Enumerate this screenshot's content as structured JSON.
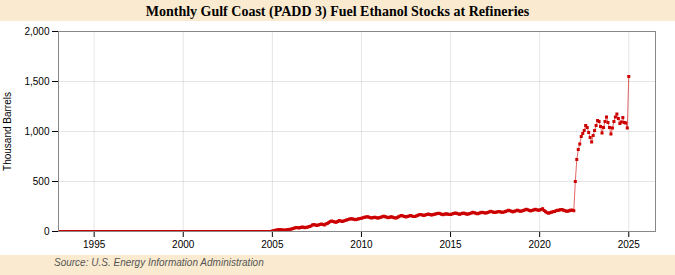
{
  "chart_data": {
    "type": "line",
    "title": "Monthly Gulf Coast (PADD 3) Fuel Ethanol Stocks at Refineries",
    "ylabel": "Thousand Barrels",
    "source": "Source: U.S. Energy Information Administration",
    "color": "#cc0000",
    "marker": "square",
    "line_style": "solid",
    "grid": true,
    "xlim": [
      1993.0,
      2026.5
    ],
    "xticks": [
      1995,
      2000,
      2005,
      2010,
      2015,
      2020,
      2025
    ],
    "ylim": [
      0,
      2000
    ],
    "yticks": [
      0,
      500,
      {
        "value": 1000,
        "label": "1,000"
      },
      {
        "value": 1500,
        "label": "1,500"
      },
      {
        "value": 2000,
        "label": "2,000"
      }
    ],
    "x": [
      1993.0,
      1993.083,
      1993.167,
      1993.25,
      1993.333,
      1993.417,
      1993.5,
      1993.583,
      1993.667,
      1993.75,
      1993.833,
      1993.917,
      1994.0,
      1994.083,
      1994.167,
      1994.25,
      1994.333,
      1994.417,
      1994.5,
      1994.583,
      1994.667,
      1994.75,
      1994.833,
      1994.917,
      1995.0,
      1995.083,
      1995.167,
      1995.25,
      1995.333,
      1995.417,
      1995.5,
      1995.583,
      1995.667,
      1995.75,
      1995.833,
      1995.917,
      1996.0,
      1996.083,
      1996.167,
      1996.25,
      1996.333,
      1996.417,
      1996.5,
      1996.583,
      1996.667,
      1996.75,
      1996.833,
      1996.917,
      1997.0,
      1997.083,
      1997.167,
      1997.25,
      1997.333,
      1997.417,
      1997.5,
      1997.583,
      1997.667,
      1997.75,
      1997.833,
      1997.917,
      1998.0,
      1998.083,
      1998.167,
      1998.25,
      1998.333,
      1998.417,
      1998.5,
      1998.583,
      1998.667,
      1998.75,
      1998.833,
      1998.917,
      1999.0,
      1999.083,
      1999.167,
      1999.25,
      1999.333,
      1999.417,
      1999.5,
      1999.583,
      1999.667,
      1999.75,
      1999.833,
      1999.917,
      2000.0,
      2000.083,
      2000.167,
      2000.25,
      2000.333,
      2000.417,
      2000.5,
      2000.583,
      2000.667,
      2000.75,
      2000.833,
      2000.917,
      2001.0,
      2001.083,
      2001.167,
      2001.25,
      2001.333,
      2001.417,
      2001.5,
      2001.583,
      2001.667,
      2001.75,
      2001.833,
      2001.917,
      2002.0,
      2002.083,
      2002.167,
      2002.25,
      2002.333,
      2002.417,
      2002.5,
      2002.583,
      2002.667,
      2002.75,
      2002.833,
      2002.917,
      2003.0,
      2003.083,
      2003.167,
      2003.25,
      2003.333,
      2003.417,
      2003.5,
      2003.583,
      2003.667,
      2003.75,
      2003.833,
      2003.917,
      2004.0,
      2004.083,
      2004.167,
      2004.25,
      2004.333,
      2004.417,
      2004.5,
      2004.583,
      2004.667,
      2004.75,
      2004.833,
      2004.917,
      2005.0,
      2005.083,
      2005.167,
      2005.25,
      2005.333,
      2005.417,
      2005.5,
      2005.583,
      2005.667,
      2005.75,
      2005.833,
      2005.917,
      2006.0,
      2006.083,
      2006.167,
      2006.25,
      2006.333,
      2006.417,
      2006.5,
      2006.583,
      2006.667,
      2006.75,
      2006.833,
      2006.917,
      2007.0,
      2007.083,
      2007.167,
      2007.25,
      2007.333,
      2007.417,
      2007.5,
      2007.583,
      2007.667,
      2007.75,
      2007.833,
      2007.917,
      2008.0,
      2008.083,
      2008.167,
      2008.25,
      2008.333,
      2008.417,
      2008.5,
      2008.583,
      2008.667,
      2008.75,
      2008.833,
      2008.917,
      2009.0,
      2009.083,
      2009.167,
      2009.25,
      2009.333,
      2009.417,
      2009.5,
      2009.583,
      2009.667,
      2009.75,
      2009.833,
      2009.917,
      2010.0,
      2010.083,
      2010.167,
      2010.25,
      2010.333,
      2010.417,
      2010.5,
      2010.583,
      2010.667,
      2010.75,
      2010.833,
      2010.917,
      2011.0,
      2011.083,
      2011.167,
      2011.25,
      2011.333,
      2011.417,
      2011.5,
      2011.583,
      2011.667,
      2011.75,
      2011.833,
      2011.917,
      2012.0,
      2012.083,
      2012.167,
      2012.25,
      2012.333,
      2012.417,
      2012.5,
      2012.583,
      2012.667,
      2012.75,
      2012.833,
      2012.917,
      2013.0,
      2013.083,
      2013.167,
      2013.25,
      2013.333,
      2013.417,
      2013.5,
      2013.583,
      2013.667,
      2013.75,
      2013.833,
      2013.917,
      2014.0,
      2014.083,
      2014.167,
      2014.25,
      2014.333,
      2014.417,
      2014.5,
      2014.583,
      2014.667,
      2014.75,
      2014.833,
      2014.917,
      2015.0,
      2015.083,
      2015.167,
      2015.25,
      2015.333,
      2015.417,
      2015.5,
      2015.583,
      2015.667,
      2015.75,
      2015.833,
      2015.917,
      2016.0,
      2016.083,
      2016.167,
      2016.25,
      2016.333,
      2016.417,
      2016.5,
      2016.583,
      2016.667,
      2016.75,
      2016.833,
      2016.917,
      2017.0,
      2017.083,
      2017.167,
      2017.25,
      2017.333,
      2017.417,
      2017.5,
      2017.583,
      2017.667,
      2017.75,
      2017.833,
      2017.917,
      2018.0,
      2018.083,
      2018.167,
      2018.25,
      2018.333,
      2018.417,
      2018.5,
      2018.583,
      2018.667,
      2018.75,
      2018.833,
      2018.917,
      2019.0,
      2019.083,
      2019.167,
      2019.25,
      2019.333,
      2019.417,
      2019.5,
      2019.583,
      2019.667,
      2019.75,
      2019.833,
      2019.917,
      2020.0,
      2020.083,
      2020.167,
      2020.25,
      2020.333,
      2020.417,
      2020.5,
      2020.583,
      2020.667,
      2020.75,
      2020.833,
      2020.917,
      2021.0,
      2021.083,
      2021.167,
      2021.25,
      2021.333,
      2021.417,
      2021.5,
      2021.583,
      2021.667,
      2021.75,
      2021.833,
      2021.917,
      2022.0,
      2022.083,
      2022.167,
      2022.25,
      2022.333,
      2022.417,
      2022.5,
      2022.583,
      2022.667,
      2022.75,
      2022.833,
      2022.917,
      2023.0,
      2023.083,
      2023.167,
      2023.25,
      2023.333,
      2023.417,
      2023.5,
      2023.583,
      2023.667,
      2023.75,
      2023.833,
      2023.917,
      2024.0,
      2024.083,
      2024.167,
      2024.25,
      2024.333,
      2024.417,
      2024.5,
      2024.583,
      2024.667,
      2024.75,
      2024.833,
      2024.917,
      2025.0
    ],
    "values": [
      0,
      0,
      0,
      0,
      0,
      0,
      0,
      0,
      0,
      0,
      0,
      0,
      0,
      0,
      0,
      0,
      0,
      0,
      0,
      0,
      0,
      0,
      0,
      0,
      0,
      0,
      0,
      0,
      0,
      0,
      0,
      0,
      0,
      0,
      0,
      0,
      0,
      0,
      0,
      0,
      0,
      0,
      0,
      0,
      0,
      0,
      0,
      0,
      0,
      0,
      0,
      0,
      0,
      0,
      0,
      0,
      0,
      0,
      0,
      0,
      0,
      0,
      0,
      0,
      0,
      0,
      0,
      0,
      0,
      0,
      0,
      0,
      0,
      0,
      0,
      0,
      0,
      0,
      0,
      0,
      0,
      0,
      0,
      0,
      0,
      0,
      0,
      0,
      0,
      0,
      0,
      0,
      0,
      0,
      0,
      0,
      0,
      0,
      0,
      0,
      0,
      0,
      0,
      0,
      0,
      0,
      0,
      0,
      0,
      0,
      0,
      0,
      0,
      0,
      0,
      0,
      0,
      0,
      0,
      0,
      0,
      0,
      0,
      0,
      0,
      0,
      0,
      0,
      0,
      0,
      0,
      0,
      0,
      0,
      0,
      0,
      0,
      0,
      0,
      0,
      0,
      0,
      0,
      0,
      5,
      8,
      12,
      15,
      18,
      20,
      18,
      15,
      12,
      15,
      18,
      20,
      22,
      25,
      30,
      35,
      40,
      38,
      35,
      40,
      45,
      42,
      38,
      42,
      45,
      50,
      55,
      65,
      70,
      65,
      60,
      65,
      70,
      75,
      70,
      65,
      75,
      80,
      90,
      100,
      105,
      100,
      95,
      92,
      100,
      110,
      105,
      100,
      105,
      110,
      115,
      120,
      125,
      128,
      125,
      122,
      118,
      122,
      126,
      130,
      132,
      138,
      142,
      145,
      148,
      143,
      138,
      135,
      140,
      143,
      138,
      134,
      138,
      142,
      148,
      153,
      148,
      143,
      138,
      142,
      148,
      143,
      138,
      135,
      138,
      148,
      155,
      160,
      155,
      150,
      145,
      150,
      155,
      160,
      155,
      150,
      150,
      156,
      162,
      168,
      170,
      165,
      160,
      165,
      170,
      175,
      170,
      165,
      168,
      172,
      175,
      180,
      182,
      178,
      172,
      168,
      173,
      178,
      173,
      172,
      170,
      175,
      180,
      185,
      182,
      177,
      172,
      177,
      182,
      184,
      178,
      173,
      175,
      180,
      185,
      192,
      188,
      182,
      177,
      182,
      187,
      192,
      190,
      185,
      185,
      190,
      196,
      202,
      198,
      192,
      190,
      195,
      198,
      200,
      193,
      192,
      195,
      200,
      206,
      212,
      208,
      202,
      196,
      202,
      207,
      213,
      207,
      202,
      205,
      210,
      216,
      222,
      217,
      211,
      206,
      211,
      216,
      222,
      217,
      212,
      215,
      220,
      228,
      210,
      198,
      188,
      183,
      188,
      193,
      198,
      200,
      208,
      212,
      213,
      218,
      220,
      213,
      208,
      203,
      203,
      208,
      214,
      213,
      208,
      500,
      720,
      820,
      875,
      950,
      980,
      1010,
      1060,
      1040,
      990,
      940,
      895,
      960,
      1010,
      1060,
      1110,
      1100,
      1050,
      985,
      1040,
      1100,
      1145,
      1090,
      1040,
      975,
      1035,
      1100,
      1145,
      1175,
      1130,
      1080,
      1095,
      1140,
      1090,
      1085,
      1035,
      1550
    ]
  }
}
